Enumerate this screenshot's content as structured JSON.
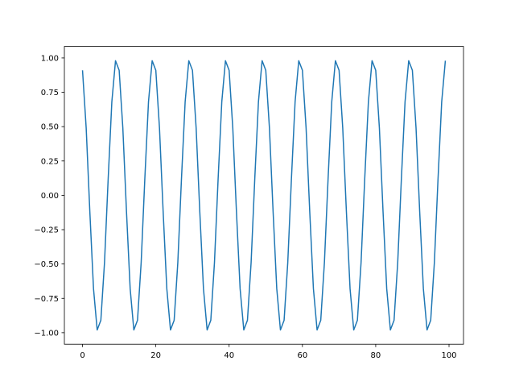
{
  "chart_data": {
    "type": "line",
    "title": "",
    "xlabel": "",
    "ylabel": "",
    "xlim": [
      -4.95,
      103.95
    ],
    "ylim": [
      -1.084,
      1.084
    ],
    "grid": false,
    "xticks": [
      0,
      20,
      40,
      60,
      80,
      100
    ],
    "xtick_labels": [
      "0",
      "20",
      "40",
      "60",
      "80",
      "100"
    ],
    "yticks": [
      -1.0,
      -0.75,
      -0.5,
      -0.25,
      0.0,
      0.25,
      0.5,
      0.75,
      1.0
    ],
    "ytick_labels": [
      "−1.00",
      "−0.75",
      "−0.50",
      "−0.25",
      "0.00",
      "0.25",
      "0.50",
      "0.75",
      "1.00"
    ],
    "series": [
      {
        "color": "#1f77b4",
        "x_start": 0,
        "x_end": 99,
        "y": [
          0.91,
          0.49,
          -0.12,
          -0.68,
          -0.98,
          -0.91,
          -0.49,
          0.12,
          0.68,
          0.98,
          0.91,
          0.49,
          -0.12,
          -0.68,
          -0.98,
          -0.91,
          -0.49,
          0.12,
          0.68,
          0.98,
          0.91,
          0.49,
          -0.12,
          -0.68,
          -0.98,
          -0.91,
          -0.49,
          0.12,
          0.68,
          0.98,
          0.91,
          0.49,
          -0.12,
          -0.68,
          -0.98,
          -0.91,
          -0.49,
          0.12,
          0.68,
          0.98,
          0.91,
          0.49,
          -0.12,
          -0.68,
          -0.98,
          -0.91,
          -0.49,
          0.12,
          0.68,
          0.98,
          0.91,
          0.49,
          -0.12,
          -0.68,
          -0.98,
          -0.91,
          -0.49,
          0.12,
          0.68,
          0.98,
          0.91,
          0.49,
          -0.12,
          -0.68,
          -0.98,
          -0.91,
          -0.49,
          0.12,
          0.68,
          0.98,
          0.91,
          0.49,
          -0.12,
          -0.68,
          -0.98,
          -0.91,
          -0.49,
          0.12,
          0.68,
          0.98,
          0.91,
          0.49,
          -0.12,
          -0.68,
          -0.98,
          -0.91,
          -0.49,
          0.12,
          0.68,
          0.98,
          0.91,
          0.49,
          -0.12,
          -0.68,
          -0.98,
          -0.91,
          -0.49,
          0.12,
          0.68,
          0.98
        ]
      }
    ]
  }
}
